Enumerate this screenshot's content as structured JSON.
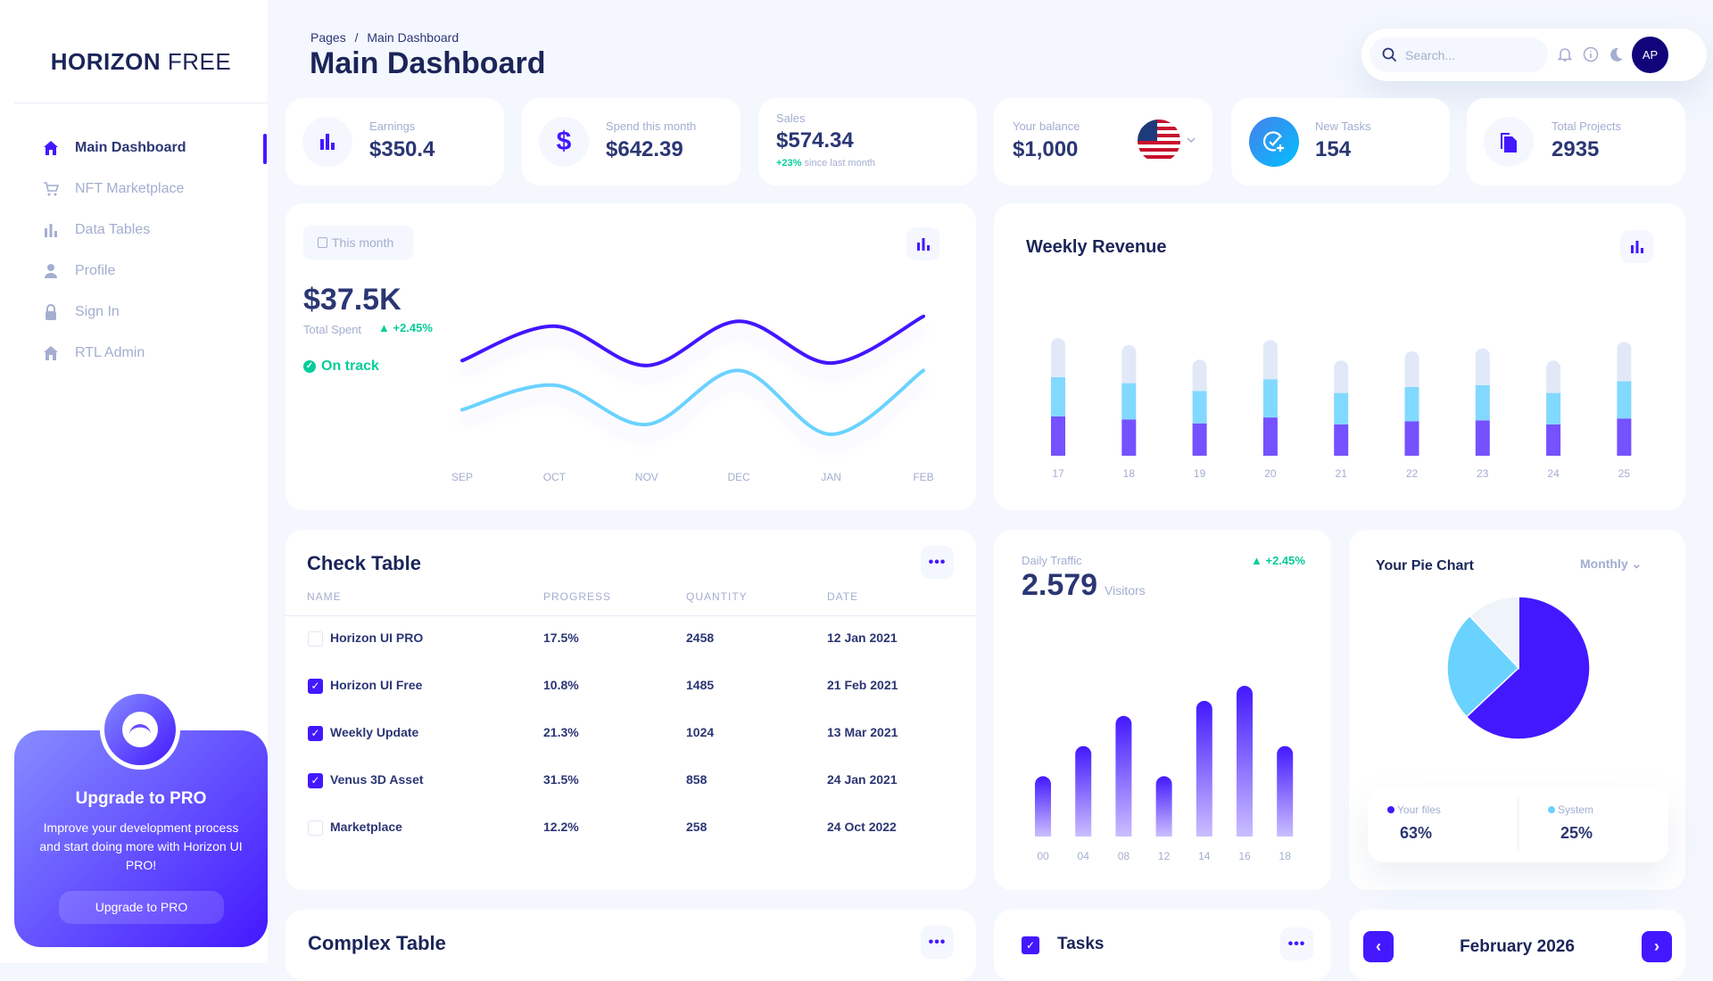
{
  "brand": {
    "logo_bold": "HORIZON",
    "logo_light": "FREE"
  },
  "colors": {
    "brand": "#4318FF",
    "navy": "#2B3674",
    "muted": "#A3AED0",
    "green": "#05CD99",
    "cyan": "#6AD2FF",
    "light": "#EFF4FB"
  },
  "sidebar": {
    "items": [
      {
        "label": "Main Dashboard",
        "icon": "home-icon",
        "active": true
      },
      {
        "label": "NFT Marketplace",
        "icon": "cart-icon"
      },
      {
        "label": "Data Tables",
        "icon": "bar-chart-icon"
      },
      {
        "label": "Profile",
        "icon": "person-icon"
      },
      {
        "label": "Sign In",
        "icon": "lock-icon"
      },
      {
        "label": "RTL Admin",
        "icon": "home-icon"
      }
    ]
  },
  "upgrade": {
    "title": "Upgrade to PRO",
    "text": "Improve your development process and start doing more with Horizon UI PRO!",
    "button": "Upgrade to PRO"
  },
  "header": {
    "breadcrumb_root": "Pages",
    "breadcrumb_sep": "/",
    "breadcrumb_current": "Main Dashboard",
    "title": "Main Dashboard",
    "search_placeholder": "Search...",
    "avatar": "AP"
  },
  "stats": {
    "earnings": {
      "label": "Earnings",
      "value": "$350.4"
    },
    "spend": {
      "label": "Spend this month",
      "value": "$642.39"
    },
    "sales": {
      "label": "Sales",
      "value": "$574.34",
      "change": "+23%",
      "change_text": "since last month"
    },
    "balance": {
      "label": "Your balance",
      "value": "$1,000"
    },
    "tasks": {
      "label": "New Tasks",
      "value": "154"
    },
    "projects": {
      "label": "Total Projects",
      "value": "2935"
    }
  },
  "total_spent": {
    "period": "This month",
    "value": "$37.5K",
    "label": "Total Spent",
    "change": "+2.45%",
    "status": "On track"
  },
  "weekly": {
    "title": "Weekly Revenue"
  },
  "check_table": {
    "title": "Check Table",
    "columns": [
      "NAME",
      "PROGRESS",
      "QUANTITY",
      "DATE"
    ],
    "rows": [
      {
        "name": "Horizon UI PRO",
        "progress": "17.5%",
        "quantity": "2458",
        "date": "12 Jan 2021",
        "checked": false
      },
      {
        "name": "Horizon UI Free",
        "progress": "10.8%",
        "quantity": "1485",
        "date": "21 Feb 2021",
        "checked": true
      },
      {
        "name": "Weekly Update",
        "progress": "21.3%",
        "quantity": "1024",
        "date": "13 Mar 2021",
        "checked": true
      },
      {
        "name": "Venus 3D Asset",
        "progress": "31.5%",
        "quantity": "858",
        "date": "24 Jan 2021",
        "checked": true
      },
      {
        "name": "Marketplace",
        "progress": "12.2%",
        "quantity": "258",
        "date": "24 Oct 2022",
        "checked": false
      }
    ]
  },
  "traffic": {
    "label": "Daily Traffic",
    "value": "2.579",
    "unit": "Visitors",
    "change": "+2.45%"
  },
  "pie": {
    "title": "Your Pie Chart",
    "period": "Monthly",
    "legend": [
      {
        "name": "Your files",
        "value": "63%"
      },
      {
        "name": "System",
        "value": "25%"
      }
    ]
  },
  "complex_table": {
    "title": "Complex Table"
  },
  "tasks_card": {
    "title": "Tasks"
  },
  "calendar": {
    "month": "February 2026"
  },
  "chart_data": [
    {
      "type": "line",
      "x": [
        "SEP",
        "OCT",
        "NOV",
        "DEC",
        "JAN",
        "FEB"
      ],
      "series": [
        {
          "values": [
            50,
            64,
            48,
            66,
            49,
            68
          ],
          "color": "#4318FF"
        },
        {
          "values": [
            30,
            40,
            24,
            46,
            20,
            46
          ],
          "color": "#6AD2FF"
        }
      ],
      "grid": false
    },
    {
      "type": "bar",
      "stacked": true,
      "categories": [
        "17",
        "18",
        "19",
        "20",
        "21",
        "22",
        "23",
        "24",
        "25"
      ],
      "series": [
        {
          "values": [
            400,
            370,
            330,
            390,
            320,
            350,
            360,
            320,
            380
          ],
          "color": "#7551FF"
        },
        {
          "values": [
            400,
            370,
            330,
            390,
            320,
            350,
            360,
            320,
            380
          ],
          "color": "#82D9FF"
        },
        {
          "values": [
            400,
            390,
            320,
            400,
            330,
            365,
            375,
            330,
            400
          ],
          "color": "#E1E9F8"
        }
      ],
      "ylim": [
        0,
        1300
      ],
      "grid": false
    },
    {
      "type": "bar",
      "categories": [
        "00",
        "04",
        "08",
        "12",
        "14",
        "16",
        "18"
      ],
      "values": [
        20,
        30,
        40,
        20,
        45,
        50,
        30
      ],
      "ylim": [
        0,
        50
      ],
      "grid": false
    },
    {
      "type": "pie",
      "labels": [
        "Your files",
        "System",
        ""
      ],
      "values": [
        63,
        25,
        12
      ],
      "colors": [
        "#4318FF",
        "#6AD2FF",
        "#EFF4FB"
      ]
    }
  ]
}
